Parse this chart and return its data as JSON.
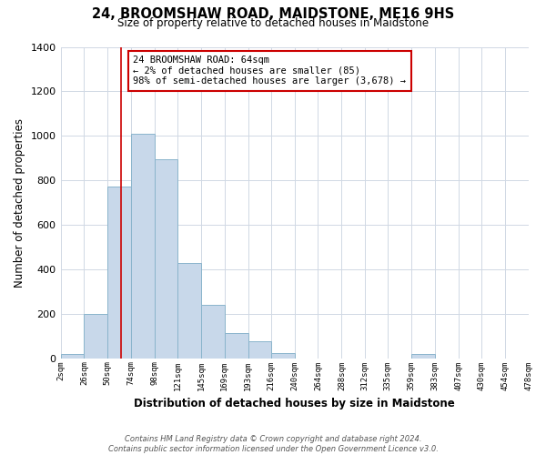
{
  "title": "24, BROOMSHAW ROAD, MAIDSTONE, ME16 9HS",
  "subtitle": "Size of property relative to detached houses in Maidstone",
  "xlabel": "Distribution of detached houses by size in Maidstone",
  "ylabel": "Number of detached properties",
  "bar_edges": [
    2,
    26,
    50,
    74,
    98,
    121,
    145,
    169,
    193,
    216,
    240,
    264,
    288,
    312,
    335,
    359,
    383,
    407,
    430,
    454,
    478
  ],
  "bar_heights": [
    20,
    200,
    770,
    1010,
    895,
    430,
    240,
    115,
    75,
    25,
    0,
    0,
    0,
    0,
    0,
    20,
    0,
    0,
    0,
    0
  ],
  "bar_color": "#c8d8ea",
  "bar_edgecolor": "#8ab4cc",
  "tick_labels": [
    "2sqm",
    "26sqm",
    "50sqm",
    "74sqm",
    "98sqm",
    "121sqm",
    "145sqm",
    "169sqm",
    "193sqm",
    "216sqm",
    "240sqm",
    "264sqm",
    "288sqm",
    "312sqm",
    "335sqm",
    "359sqm",
    "383sqm",
    "407sqm",
    "430sqm",
    "454sqm",
    "478sqm"
  ],
  "ylim": [
    0,
    1400
  ],
  "yticks": [
    0,
    200,
    400,
    600,
    800,
    1000,
    1200,
    1400
  ],
  "property_line_x": 64,
  "property_line_color": "#cc0000",
  "annotation_text": "24 BROOMSHAW ROAD: 64sqm\n← 2% of detached houses are smaller (85)\n98% of semi-detached houses are larger (3,678) →",
  "annotation_box_edgecolor": "#cc0000",
  "annotation_box_facecolor": "#ffffff",
  "footnote": "Contains HM Land Registry data © Crown copyright and database right 2024.\nContains public sector information licensed under the Open Government Licence v3.0.",
  "bg_color": "#ffffff",
  "grid_color": "#d0d8e4"
}
